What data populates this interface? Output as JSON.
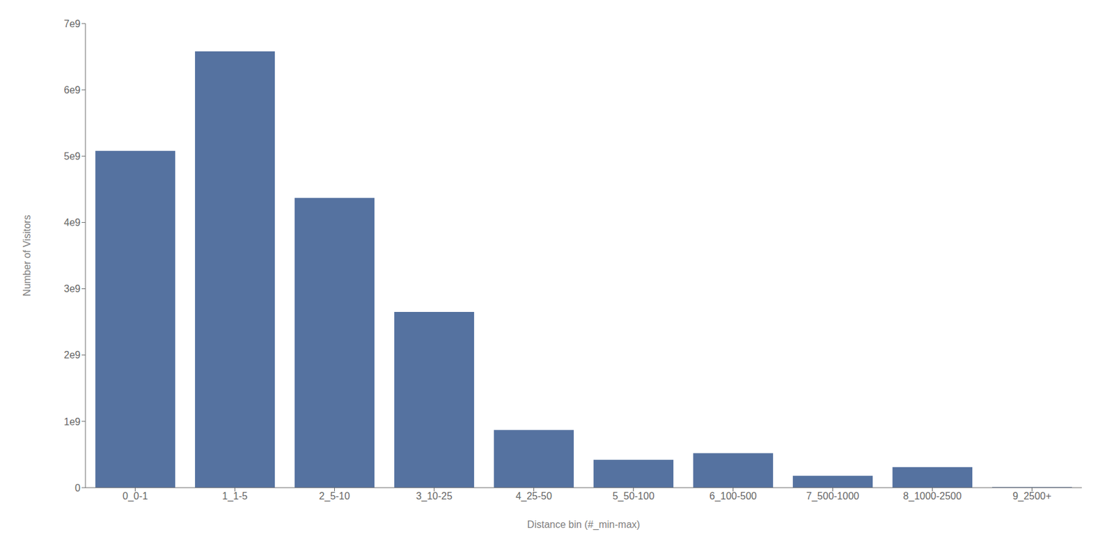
{
  "chart_data": {
    "type": "bar",
    "categories": [
      "0_0-1",
      "1_1-5",
      "2_5-10",
      "3_10-25",
      "4_25-50",
      "5_50-100",
      "6_100-500",
      "7_500-1000",
      "8_1000-2500",
      "9_2500+"
    ],
    "values": [
      5080000000.0,
      6580000000.0,
      4370000000.0,
      2650000000.0,
      870000000.0,
      420000000.0,
      520000000.0,
      180000000.0,
      310000000.0,
      10000000.0
    ],
    "color": "#5572a0",
    "xlabel": "Distance bin (#_min-max)",
    "ylabel": "Number of Visitors",
    "ylim": [
      0,
      7000000000.0
    ],
    "yticks": [
      0,
      {
        "value": 1000000000.0,
        "label": "1e9"
      },
      {
        "value": 2000000000.0,
        "label": "2e9"
      },
      {
        "value": 3000000000.0,
        "label": "3e9"
      },
      {
        "value": 4000000000.0,
        "label": "4e9"
      },
      {
        "value": 5000000000.0,
        "label": "5e9"
      },
      {
        "value": 6000000000.0,
        "label": "6e9"
      },
      {
        "value": 7000000000.0,
        "label": "7e9"
      }
    ],
    "grid": false
  }
}
